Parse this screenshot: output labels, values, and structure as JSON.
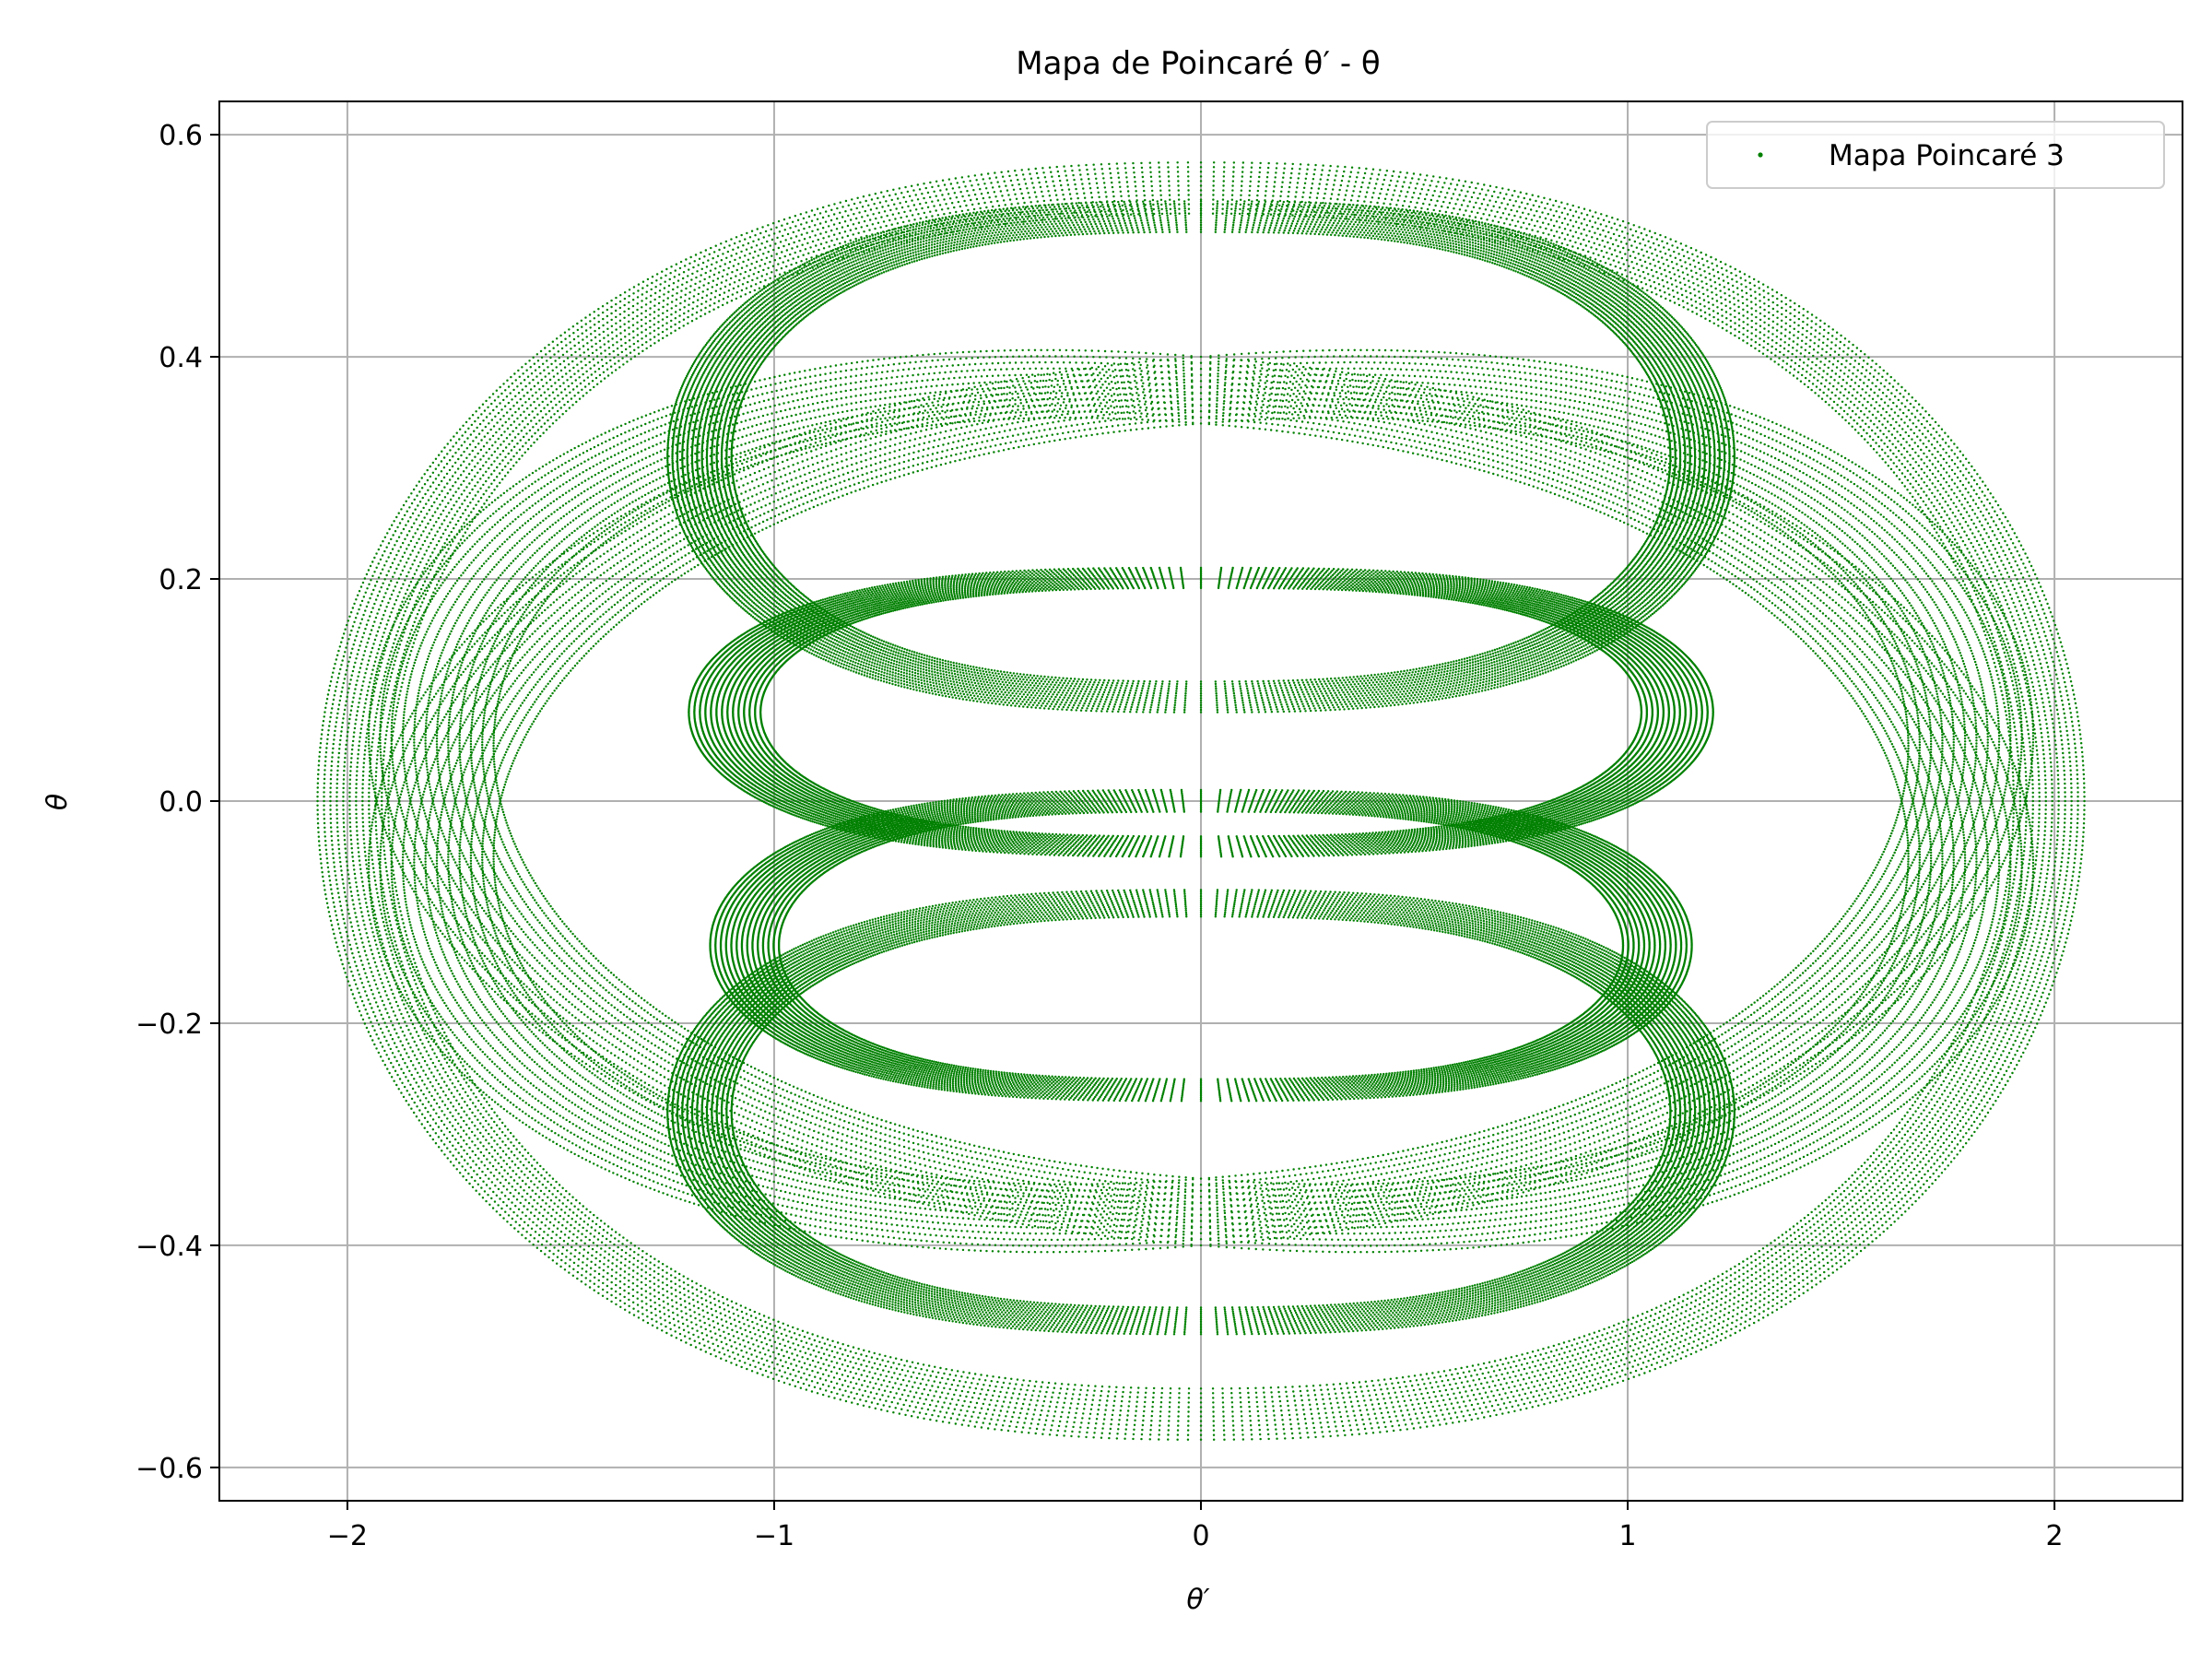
{
  "chart_data": {
    "type": "scatter",
    "title": "Mapa de Poincaré θ′ - θ",
    "xlabel": "θ′",
    "ylabel": "θ",
    "xlim": [
      -2.3,
      2.3
    ],
    "ylim": [
      -0.63,
      0.63
    ],
    "xticks": [
      -2,
      -1,
      0,
      1,
      2
    ],
    "xtick_labels": [
      "−2",
      "−1",
      "0",
      "1",
      "2"
    ],
    "yticks": [
      0.6,
      0.4,
      0.2,
      0.0,
      -0.2,
      -0.4,
      -0.6
    ],
    "ytick_labels": [
      "0.6",
      "0.4",
      "0.2",
      "0.0",
      "−0.2",
      "−0.4",
      "−0.6"
    ],
    "grid": true,
    "legend_position": "top-right",
    "series": [
      {
        "name": "Mapa Poincaré 3",
        "color": "#008000",
        "marker": "point",
        "bands": [
          {
            "description": "outer ring",
            "x_extent": [
              -2.07,
              2.07
            ],
            "y_extent": [
              -0.575,
              0.575
            ]
          },
          {
            "description": "upper inner ring",
            "x_extent": [
              -1.25,
              1.25
            ],
            "y_extent": [
              0.08,
              0.54
            ]
          },
          {
            "description": "lower inner ring",
            "x_extent": [
              -1.25,
              1.25
            ],
            "y_extent": [
              -0.48,
              -0.08
            ]
          },
          {
            "description": "middle loop upper",
            "x_extent": [
              -1.2,
              1.2
            ],
            "y_extent": [
              -0.05,
              0.21
            ]
          },
          {
            "description": "middle loop lower",
            "x_extent": [
              -1.15,
              1.15
            ],
            "y_extent": [
              -0.27,
              0.0
            ]
          },
          {
            "description": "tilted ring rising",
            "x_extent": [
              -2.0,
              2.0
            ],
            "y_extent": [
              -0.45,
              0.41
            ]
          },
          {
            "description": "tilted ring falling",
            "x_extent": [
              -2.0,
              2.0
            ],
            "y_extent": [
              -0.41,
              0.45
            ]
          }
        ]
      }
    ]
  }
}
